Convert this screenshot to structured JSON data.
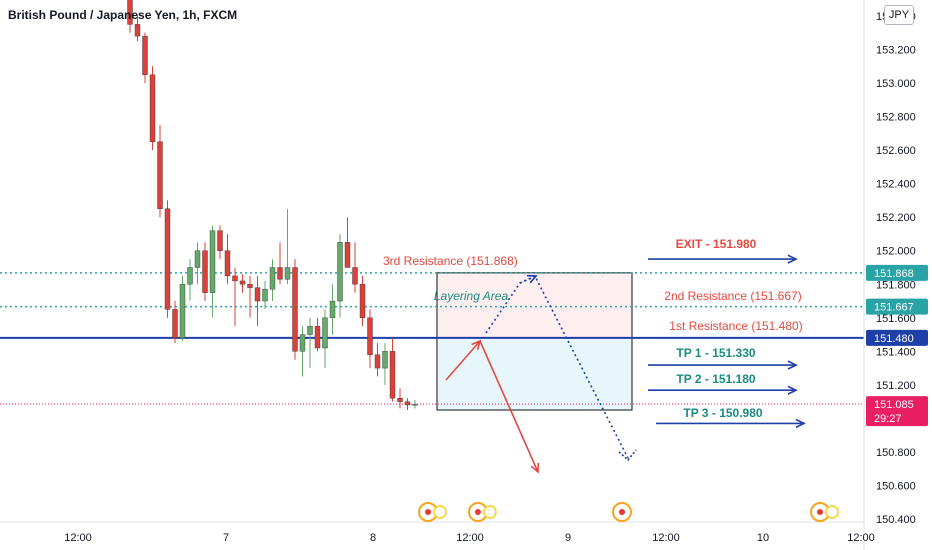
{
  "header": {
    "title": "British Pound / Japanese Yen, 1h, FXCM",
    "currency_badge": "JPY"
  },
  "colors": {
    "up": "#66a96a",
    "down": "#d9413a",
    "blue": "#1e3fa8",
    "teal": "#1aa6a0",
    "red_text": "#e24a41",
    "teal_text": "#1a8c7f",
    "dotted_level": "#2aa3a6",
    "last_price": "#e91e63",
    "grid": "#f0f3fa"
  },
  "chart_data": {
    "type": "candlestick",
    "title": "British Pound / Japanese Yen, 1h, FXCM",
    "ylim": [
      150.4,
      153.4
    ],
    "y_ticks": [
      "150.400",
      "150.600",
      "150.800",
      "151.000",
      "151.200",
      "151.400",
      "151.600",
      "151.800",
      "152.000",
      "152.200",
      "152.400",
      "152.600",
      "152.800",
      "153.000",
      "153.200",
      "153.400"
    ],
    "x_ticks": [
      "12:00",
      "7",
      "12:00",
      "8",
      "12:00",
      "9",
      "12:00",
      "10",
      "12:00"
    ],
    "candles": [
      {
        "o": 153.7,
        "h": 153.75,
        "l": 153.3,
        "c": 153.35
      },
      {
        "o": 153.35,
        "h": 153.4,
        "l": 153.25,
        "c": 153.28
      },
      {
        "o": 153.28,
        "h": 153.3,
        "l": 153.0,
        "c": 153.05
      },
      {
        "o": 153.05,
        "h": 153.1,
        "l": 152.6,
        "c": 152.65
      },
      {
        "o": 152.65,
        "h": 152.75,
        "l": 152.2,
        "c": 152.25
      },
      {
        "o": 152.25,
        "h": 152.3,
        "l": 151.6,
        "c": 151.65
      },
      {
        "o": 151.65,
        "h": 151.7,
        "l": 151.45,
        "c": 151.48
      },
      {
        "o": 151.48,
        "h": 151.85,
        "l": 151.46,
        "c": 151.8
      },
      {
        "o": 151.8,
        "h": 151.95,
        "l": 151.7,
        "c": 151.9
      },
      {
        "o": 151.9,
        "h": 152.05,
        "l": 151.8,
        "c": 152.0
      },
      {
        "o": 152.0,
        "h": 152.05,
        "l": 151.7,
        "c": 151.75
      },
      {
        "o": 151.75,
        "h": 152.15,
        "l": 151.6,
        "c": 152.12
      },
      {
        "o": 152.12,
        "h": 152.15,
        "l": 151.95,
        "c": 152.0
      },
      {
        "o": 152.0,
        "h": 152.1,
        "l": 151.8,
        "c": 151.85
      },
      {
        "o": 151.85,
        "h": 151.9,
        "l": 151.55,
        "c": 151.82
      },
      {
        "o": 151.82,
        "h": 151.86,
        "l": 151.75,
        "c": 151.8
      },
      {
        "o": 151.8,
        "h": 151.85,
        "l": 151.6,
        "c": 151.78
      },
      {
        "o": 151.78,
        "h": 151.85,
        "l": 151.55,
        "c": 151.7
      },
      {
        "o": 151.7,
        "h": 151.82,
        "l": 151.65,
        "c": 151.77
      },
      {
        "o": 151.77,
        "h": 151.95,
        "l": 151.7,
        "c": 151.9
      },
      {
        "o": 151.9,
        "h": 152.05,
        "l": 151.8,
        "c": 151.83
      },
      {
        "o": 151.83,
        "h": 152.25,
        "l": 151.8,
        "c": 151.9
      },
      {
        "o": 151.9,
        "h": 151.95,
        "l": 151.35,
        "c": 151.4
      },
      {
        "o": 151.4,
        "h": 151.55,
        "l": 151.25,
        "c": 151.5
      },
      {
        "o": 151.5,
        "h": 151.6,
        "l": 151.3,
        "c": 151.55
      },
      {
        "o": 151.55,
        "h": 151.6,
        "l": 151.4,
        "c": 151.42
      },
      {
        "o": 151.42,
        "h": 151.65,
        "l": 151.3,
        "c": 151.6
      },
      {
        "o": 151.6,
        "h": 151.8,
        "l": 151.5,
        "c": 151.7
      },
      {
        "o": 151.7,
        "h": 152.1,
        "l": 151.6,
        "c": 152.05
      },
      {
        "o": 152.05,
        "h": 152.2,
        "l": 151.9,
        "c": 151.9
      },
      {
        "o": 151.9,
        "h": 152.05,
        "l": 151.75,
        "c": 151.8
      },
      {
        "o": 151.8,
        "h": 151.85,
        "l": 151.55,
        "c": 151.6
      },
      {
        "o": 151.6,
        "h": 151.65,
        "l": 151.3,
        "c": 151.38
      },
      {
        "o": 151.38,
        "h": 151.45,
        "l": 151.25,
        "c": 151.3
      },
      {
        "o": 151.3,
        "h": 151.45,
        "l": 151.2,
        "c": 151.4
      },
      {
        "o": 151.4,
        "h": 151.48,
        "l": 151.1,
        "c": 151.12
      },
      {
        "o": 151.12,
        "h": 151.18,
        "l": 151.06,
        "c": 151.1
      },
      {
        "o": 151.1,
        "h": 151.12,
        "l": 151.05,
        "c": 151.08
      },
      {
        "o": 151.08,
        "h": 151.11,
        "l": 151.06,
        "c": 151.085
      }
    ],
    "levels": [
      {
        "name": "3rd Resistance",
        "value": 151.868,
        "style": "dotted",
        "badge": "151.868"
      },
      {
        "name": "2nd Resistance",
        "value": 151.667,
        "style": "dotted",
        "badge": "151.667"
      },
      {
        "name": "1st Resistance",
        "value": 151.48,
        "style": "solid",
        "badge": "151.480"
      }
    ],
    "last_price": {
      "value": "151.085",
      "countdown": "29:27"
    },
    "annotations": [
      {
        "text": "3rd Resistance (151.868)",
        "color": "red"
      },
      {
        "text": "2nd Resistance (151.667)",
        "color": "red"
      },
      {
        "text": "1st Resistance (151.480)",
        "color": "red"
      },
      {
        "text": "Layering Area",
        "color": "teal"
      },
      {
        "text": "EXIT - 151.980",
        "color": "red"
      },
      {
        "text": "TP 1 - 151.330",
        "color": "teal"
      },
      {
        "text": "TP 2 - 151.180",
        "color": "teal"
      },
      {
        "text": "TP 3 - 150.980",
        "color": "teal"
      }
    ]
  }
}
